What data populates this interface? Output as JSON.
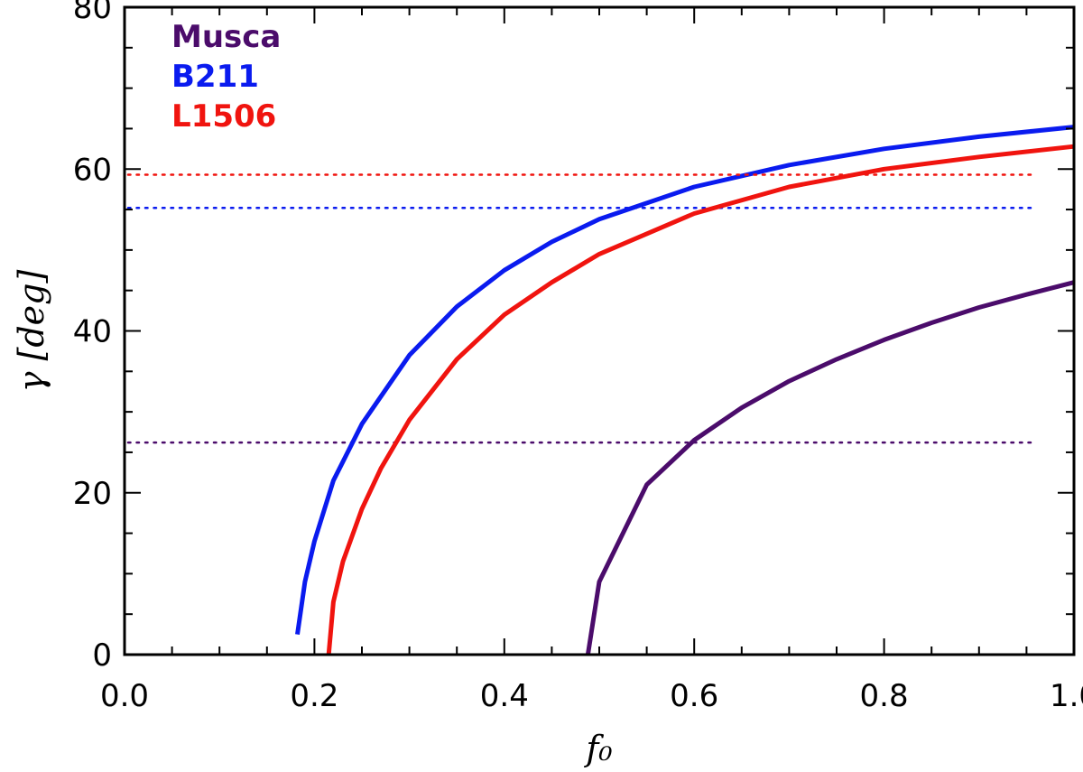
{
  "chart_data": {
    "type": "line",
    "title": "",
    "xlabel": "f₀",
    "ylabel": "γ [deg]",
    "xlim": [
      0.0,
      1.0
    ],
    "ylim": [
      0,
      80
    ],
    "x_ticks": [
      "0.0",
      "0.2",
      "0.4",
      "0.6",
      "0.8",
      "1.0"
    ],
    "y_ticks": [
      "0",
      "20",
      "40",
      "60",
      "80"
    ],
    "grid": false,
    "legend_position": "top-left",
    "series": [
      {
        "name": "Musca",
        "color": "#4B0C6B",
        "x": [
          0.488,
          0.5,
          0.55,
          0.6,
          0.65,
          0.7,
          0.75,
          0.8,
          0.85,
          0.9,
          0.95,
          1.0
        ],
        "y": [
          0.0,
          9.0,
          21.0,
          26.5,
          30.5,
          33.8,
          36.5,
          38.9,
          41.0,
          42.9,
          44.5,
          46.0
        ],
        "reference_y": 26.2
      },
      {
        "name": "B211",
        "color": "#0A1BEF",
        "x": [
          0.182,
          0.19,
          0.2,
          0.22,
          0.25,
          0.3,
          0.35,
          0.4,
          0.45,
          0.5,
          0.6,
          0.7,
          0.8,
          0.9,
          1.0
        ],
        "y": [
          2.5,
          9.0,
          14.0,
          21.5,
          28.5,
          37.0,
          43.0,
          47.5,
          51.0,
          53.8,
          57.8,
          60.5,
          62.5,
          64.0,
          65.2
        ],
        "reference_y": 55.2
      },
      {
        "name": "L1506",
        "color": "#F0140F",
        "x": [
          0.215,
          0.22,
          0.23,
          0.25,
          0.27,
          0.3,
          0.35,
          0.4,
          0.45,
          0.5,
          0.6,
          0.7,
          0.8,
          0.9,
          1.0
        ],
        "y": [
          0.0,
          6.5,
          11.5,
          18.0,
          23.0,
          29.0,
          36.5,
          42.0,
          46.0,
          49.5,
          54.5,
          57.8,
          60.0,
          61.5,
          62.8
        ],
        "reference_y": 59.3
      }
    ]
  }
}
